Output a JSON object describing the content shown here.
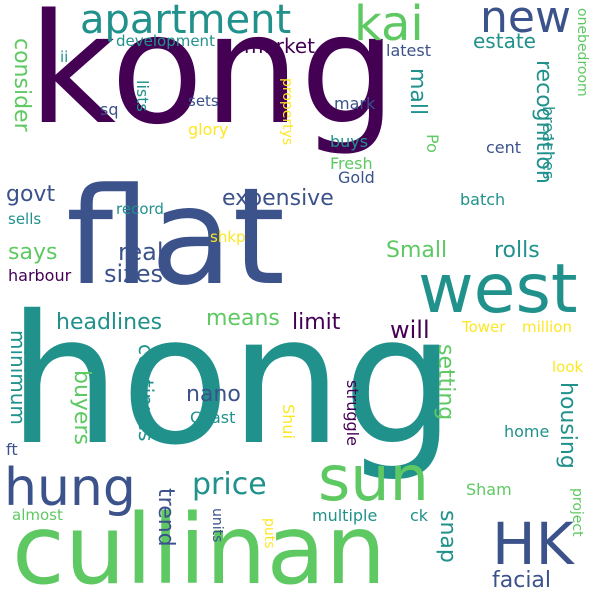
{
  "palette": {
    "dark_purple": "#440154",
    "indigo": "#3b528b",
    "teal": "#21918c",
    "green": "#5ec962",
    "yellow": "#fde725"
  },
  "words": {
    "kong": "kong",
    "flat": "flat",
    "hong": "hong",
    "cullinan": "cullinan",
    "west": "west",
    "sun": "sun",
    "hung": "hung",
    "hk": "HK",
    "apartment": "apartment",
    "kai": "kai",
    "new": "new",
    "market": "market",
    "estate": "estate",
    "development": "development",
    "latest": "latest",
    "ii": "ii",
    "consider": "consider",
    "mall": "mall",
    "recognition": "recognition",
    "onebedroom": "onebedroom",
    "sets": "sets",
    "sq": "sq",
    "lists": "lists",
    "glory": "glory",
    "propertys": "propertys",
    "mark": "mark",
    "buys": "buys",
    "po": "Po",
    "cent": "cent",
    "breaches": "breaches",
    "fresh": "Fresh",
    "gold": "Gold",
    "govt": "govt",
    "expensive": "expensive",
    "sells": "sells",
    "record": "record",
    "batch": "batch",
    "shkp": "shkp",
    "says": "says",
    "real": "real",
    "small": "Small",
    "rolls": "rolls",
    "sizes": "sizes",
    "harbour": "harbour",
    "headlines": "headlines",
    "means": "means",
    "limit": "limit",
    "will": "will",
    "tower": "Tower",
    "million": "million",
    "minimum": "minimum",
    "continues": "continues",
    "buyers": "buyers",
    "nano": "nano",
    "coast": "Coast",
    "setting": "setting",
    "housing": "housing",
    "look": "look",
    "shui": "Shui",
    "struggle": "struggle",
    "home": "home",
    "ft": "ft",
    "price": "price",
    "trend": "trend",
    "units": "units",
    "puts": "puts",
    "sham": "Sham",
    "project": "project",
    "almost": "almost",
    "multiple": "multiple",
    "ck": "ck",
    "snap": "snap",
    "facial": "facial"
  }
}
